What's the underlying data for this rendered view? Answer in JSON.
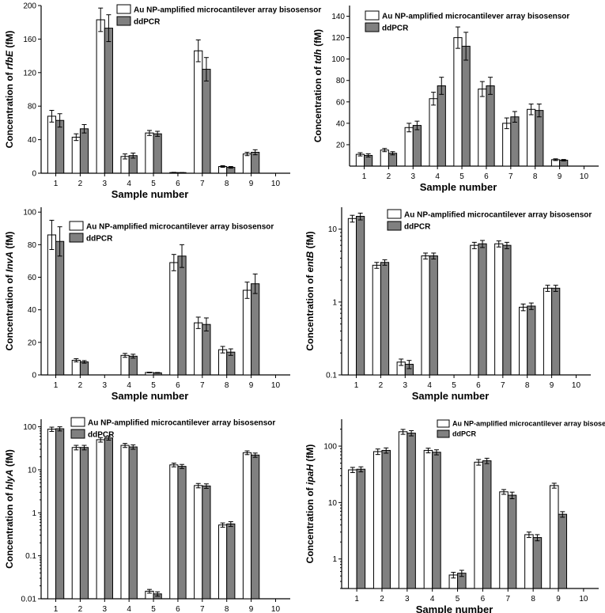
{
  "figure": {
    "x_title": "Sample  number",
    "y_title_prefix": "Concentration of ",
    "y_title_suffix": " (fM)"
  },
  "chart_data": [
    {
      "type": "bar",
      "gene": "rfbE",
      "scale": "linear",
      "ylim": [
        0,
        200
      ],
      "yticks": [
        0,
        40,
        80,
        120,
        160,
        200
      ],
      "ytick_labels": [
        "0",
        "40",
        "80",
        "120",
        "160",
        "200"
      ],
      "categories": [
        "1",
        "2",
        "3",
        "4",
        "5",
        "6",
        "7",
        "8",
        "9",
        "10"
      ],
      "series": [
        {
          "name": "Au NP-amplified microcantilever array bisosensor",
          "values": [
            68,
            43,
            183,
            20,
            48,
            0.8,
            146,
            8,
            23,
            null
          ],
          "errors": [
            7,
            4,
            14,
            3,
            3,
            0.3,
            13,
            1,
            2,
            null
          ]
        },
        {
          "name": "ddPCR",
          "values": [
            63,
            53,
            173,
            21,
            47,
            0.5,
            124,
            7,
            25,
            null
          ],
          "errors": [
            8,
            5,
            16,
            3,
            3,
            0.3,
            14,
            1,
            3,
            null
          ]
        }
      ]
    },
    {
      "type": "bar",
      "gene": "tdh",
      "scale": "linear",
      "ylim": [
        0,
        150
      ],
      "yticks": [
        20,
        40,
        60,
        80,
        100,
        120,
        140
      ],
      "ytick_labels": [
        "20",
        "40",
        "60",
        "80",
        "100",
        "120",
        "140"
      ],
      "categories": [
        "1",
        "2",
        "3",
        "4",
        "5",
        "6",
        "7",
        "8",
        "9",
        "10"
      ],
      "series": [
        {
          "name": "Au NP-amplified microcantilever array bisosensor",
          "values": [
            11,
            15,
            36,
            63,
            120,
            72,
            40,
            53,
            6,
            null
          ],
          "errors": [
            1.5,
            1.5,
            4,
            6,
            10,
            7,
            5,
            5,
            0.8,
            null
          ]
        },
        {
          "name": "ddPCR",
          "values": [
            10,
            12,
            38,
            75,
            112,
            75,
            46,
            52,
            5.5,
            null
          ],
          "errors": [
            1.5,
            1.5,
            4,
            8,
            13,
            8,
            5,
            6,
            0.7,
            null
          ]
        }
      ]
    },
    {
      "type": "bar",
      "gene": "InvA",
      "scale": "linear",
      "ylim": [
        0,
        103
      ],
      "yticks": [
        0,
        20,
        40,
        60,
        80,
        100
      ],
      "ytick_labels": [
        "0",
        "20",
        "40",
        "60",
        "80",
        "100"
      ],
      "categories": [
        "1",
        "2",
        "3",
        "4",
        "5",
        "6",
        "7",
        "8",
        "9",
        "10"
      ],
      "series": [
        {
          "name": "Au NP-amplified microcantilever array bisosensor",
          "values": [
            86,
            9,
            null,
            12,
            1.5,
            69,
            32,
            15.5,
            52,
            null
          ],
          "errors": [
            9,
            1,
            null,
            1.2,
            0.2,
            5,
            3.5,
            2,
            5,
            null
          ]
        },
        {
          "name": "ddPCR",
          "values": [
            82,
            8,
            null,
            11.5,
            1.3,
            73,
            31,
            14,
            56,
            null
          ],
          "errors": [
            9,
            0.8,
            null,
            1.2,
            0.2,
            7,
            4,
            2,
            6,
            null
          ]
        }
      ]
    },
    {
      "type": "bar",
      "gene": "entB",
      "scale": "log",
      "ylim": [
        0.1,
        20
      ],
      "yticks": [
        0.1,
        1,
        10
      ],
      "ytick_labels": [
        "0.1",
        "1",
        "10"
      ],
      "categories": [
        "1",
        "2",
        "3",
        "4",
        "5",
        "6",
        "7",
        "8",
        "9",
        "10"
      ],
      "series": [
        {
          "name": "Au NP-amplified microcantilever array bisosensor",
          "values": [
            14,
            3.2,
            0.15,
            4.3,
            null,
            6,
            6.3,
            0.85,
            1.55,
            null
          ],
          "errors": [
            1.5,
            0.3,
            0.015,
            0.4,
            null,
            0.6,
            0.6,
            0.09,
            0.15,
            null
          ]
        },
        {
          "name": "ddPCR",
          "values": [
            15,
            3.5,
            0.14,
            4.3,
            null,
            6.3,
            6,
            0.88,
            1.55,
            null
          ],
          "errors": [
            1.6,
            0.3,
            0.018,
            0.4,
            null,
            0.7,
            0.6,
            0.09,
            0.15,
            null
          ]
        }
      ]
    },
    {
      "type": "bar",
      "gene": "hlyA",
      "scale": "log",
      "ylim": [
        0.01,
        150
      ],
      "yticks": [
        0.01,
        0.1,
        1,
        10,
        100
      ],
      "ytick_labels": [
        "0.01",
        "0.1",
        "1",
        "10",
        "100"
      ],
      "categories": [
        "1",
        "2",
        "3",
        "4",
        "5",
        "6",
        "7",
        "8",
        "9",
        "10"
      ],
      "series": [
        {
          "name": "Au NP-amplified microcantilever array bisosensor",
          "values": [
            88,
            33,
            50,
            37,
            0.015,
            13,
            4.3,
            0.52,
            25,
            null
          ],
          "errors": [
            10,
            4,
            6,
            4,
            0.0015,
            1.3,
            0.5,
            0.06,
            2.5,
            null
          ]
        },
        {
          "name": "ddPCR",
          "values": [
            90,
            33,
            55,
            34,
            0.013,
            12,
            4.2,
            0.55,
            22,
            null
          ],
          "errors": [
            10,
            4,
            6,
            4,
            0.0015,
            1.3,
            0.5,
            0.07,
            2.5,
            null
          ]
        }
      ]
    },
    {
      "type": "bar",
      "gene": "ipaH",
      "scale": "log",
      "ylim": [
        0.3,
        300
      ],
      "yticks": [
        1,
        10,
        100
      ],
      "ytick_labels": [
        "1",
        "10",
        "100"
      ],
      "categories": [
        "1",
        "2",
        "3",
        "4",
        "5",
        "6",
        "7",
        "8",
        "9",
        "10"
      ],
      "series": [
        {
          "name": "Au NP-amplified microcantilever array bisosensor",
          "values": [
            38,
            80,
            180,
            84,
            0.52,
            52,
            15.5,
            2.7,
            20,
            null
          ],
          "errors": [
            4,
            9,
            18,
            8,
            0.06,
            6,
            1.5,
            0.3,
            2,
            null
          ]
        },
        {
          "name": "ddPCR",
          "values": [
            39,
            84,
            170,
            78,
            0.56,
            55,
            13.5,
            2.4,
            6.2,
            null
          ],
          "errors": [
            4,
            9,
            18,
            8,
            0.07,
            6,
            1.8,
            0.3,
            0.7,
            null
          ]
        }
      ]
    }
  ]
}
